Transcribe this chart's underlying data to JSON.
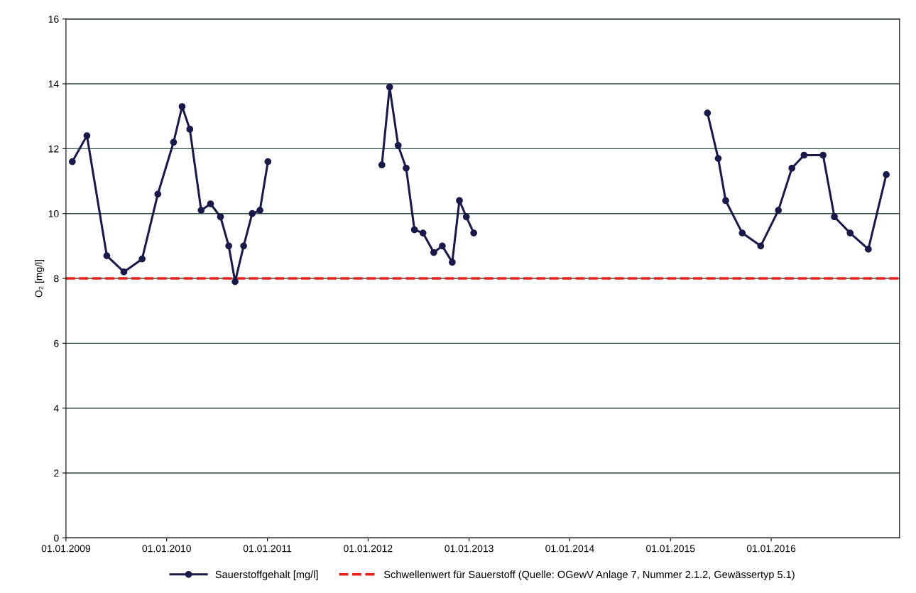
{
  "chart_data": {
    "type": "line",
    "ylabel": "O₂ [mg/l]",
    "series": [
      {
        "name": "Sauerstoffgehalt [mg/l]",
        "color": "#1a1a4a",
        "x": [
          "2009-01-24",
          "2009-03-18",
          "2009-05-29",
          "2009-07-30",
          "2009-10-04",
          "2009-11-30",
          "2010-01-26",
          "2010-02-26",
          "2010-03-26",
          "2010-05-06",
          "2010-06-09",
          "2010-07-15",
          "2010-08-14",
          "2010-09-06",
          "2010-10-07",
          "2010-11-07",
          "2010-12-05",
          "2011-01-03",
          "2011-07-01",
          "2012-02-20",
          "2012-03-19",
          "2012-04-19",
          "2012-05-18",
          "2012-06-17",
          "2012-07-18",
          "2012-08-26",
          "2012-09-26",
          "2012-11-01",
          "2012-11-27",
          "2012-12-22",
          "2013-01-18",
          "2014-01-01",
          "2015-05-15",
          "2015-06-23",
          "2015-07-20",
          "2015-09-18",
          "2015-11-24",
          "2016-01-27",
          "2016-03-16",
          "2016-04-29",
          "2016-07-07",
          "2016-08-17",
          "2016-10-13",
          "2016-12-18",
          "2017-02-21"
        ],
        "values": [
          11.6,
          12.4,
          8.7,
          8.2,
          8.6,
          10.6,
          12.2,
          13.3,
          12.6,
          10.1,
          10.3,
          9.9,
          9.0,
          7.9,
          9.0,
          10.0,
          10.1,
          11.6,
          null,
          11.5,
          13.9,
          12.1,
          11.4,
          9.5,
          9.4,
          8.8,
          9.0,
          8.5,
          10.4,
          9.9,
          9.4,
          null,
          13.1,
          11.7,
          10.4,
          9.4,
          9.0,
          10.1,
          11.4,
          11.8,
          11.8,
          9.9,
          9.4,
          8.9,
          11.2
        ]
      }
    ],
    "marker": "circle",
    "line_style": "solid",
    "ref_lines": [
      {
        "axis": "y",
        "value": 8,
        "label": "Schwellenwert für Sauerstoff (Quelle: OGewV Anlage 7, Nummer 2.1.2, Gewässertyp 5.1)",
        "color": "#e8201a",
        "line_style": "dashed"
      }
    ],
    "xlim": [
      "2009-01-01",
      "2017-04-10"
    ],
    "xticks": [
      {
        "value": "2009-01-01",
        "label": "01.01.2009"
      },
      {
        "value": "2010-01-01",
        "label": "01.01.2010"
      },
      {
        "value": "2011-01-01",
        "label": "01.01.2011"
      },
      {
        "value": "2012-01-01",
        "label": "01.01.2012"
      },
      {
        "value": "2013-01-01",
        "label": "01.01.2013"
      },
      {
        "value": "2014-01-01",
        "label": "01.01.2014"
      },
      {
        "value": "2015-01-01",
        "label": "01.01.2015"
      },
      {
        "value": "2016-01-01",
        "label": "01.01.2016"
      }
    ],
    "ylim": [
      0,
      16
    ],
    "yticks": [
      0,
      2,
      4,
      6,
      8,
      10,
      12,
      14,
      16
    ],
    "grid": "y",
    "legend": "bottom"
  }
}
